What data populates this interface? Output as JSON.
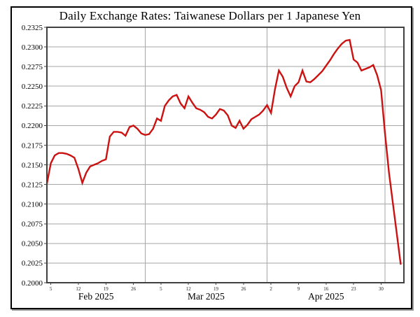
{
  "title": "Daily Exchange Rates: Taiwanese Dollars per 1 Japanese Yen",
  "chart_data": {
    "type": "line",
    "title": "Daily Exchange Rates: Taiwanese Dollars per 1 Japanese Yen",
    "series_name": "Taiwanese Dollars per 1 Japanese Yen",
    "xlabel": "",
    "ylabel": "",
    "grid": true,
    "legend_position": "none",
    "ylim": [
      0.2,
      0.2325
    ],
    "y_tick_step": 0.0025,
    "y_tick_labels": [
      "0.2325",
      "0.2300",
      "0.2275",
      "0.2250",
      "0.2225",
      "0.2200",
      "0.2175",
      "0.2150",
      "0.2125",
      "0.2100",
      "0.2075",
      "0.2050",
      "0.2025",
      "0.2000"
    ],
    "xlim_days": [
      0,
      90.8
    ],
    "x_week_ticks": [
      {
        "label": "5",
        "day": 1
      },
      {
        "label": "12",
        "day": 8
      },
      {
        "label": "19",
        "day": 15
      },
      {
        "label": "26",
        "day": 22
      },
      {
        "label": "5",
        "day": 29
      },
      {
        "label": "12",
        "day": 36
      },
      {
        "label": "19",
        "day": 43
      },
      {
        "label": "26",
        "day": 50
      },
      {
        "label": "2",
        "day": 57
      },
      {
        "label": "9",
        "day": 64
      },
      {
        "label": "16",
        "day": 71
      },
      {
        "label": "23",
        "day": 78
      },
      {
        "label": "30",
        "day": 85
      }
    ],
    "month_labels": [
      {
        "label": "Feb 2025",
        "day": 12.5
      },
      {
        "label": "Mar 2025",
        "day": 40.5
      },
      {
        "label": "Apr 2025",
        "day": 71
      }
    ],
    "month_gridline_days": [
      25,
      56,
      86
    ],
    "line_color": "#cc1111",
    "grid_color": "#a6a6a6",
    "frame_color": "#404040",
    "dates": [
      "2025-02-04",
      "2025-02-05",
      "2025-02-06",
      "2025-02-07",
      "2025-02-08",
      "2025-02-09",
      "2025-02-10",
      "2025-02-11",
      "2025-02-12",
      "2025-02-13",
      "2025-02-14",
      "2025-02-15",
      "2025-02-16",
      "2025-02-17",
      "2025-02-18",
      "2025-02-19",
      "2025-02-20",
      "2025-02-21",
      "2025-02-22",
      "2025-02-23",
      "2025-02-24",
      "2025-02-25",
      "2025-02-26",
      "2025-02-27",
      "2025-02-28",
      "2025-03-01",
      "2025-03-02",
      "2025-03-03",
      "2025-03-04",
      "2025-03-05",
      "2025-03-06",
      "2025-03-07",
      "2025-03-08",
      "2025-03-09",
      "2025-03-10",
      "2025-03-11",
      "2025-03-12",
      "2025-03-13",
      "2025-03-14",
      "2025-03-15",
      "2025-03-16",
      "2025-03-17",
      "2025-03-18",
      "2025-03-19",
      "2025-03-20",
      "2025-03-21",
      "2025-03-22",
      "2025-03-23",
      "2025-03-24",
      "2025-03-25",
      "2025-03-26",
      "2025-03-27",
      "2025-03-28",
      "2025-03-29",
      "2025-03-30",
      "2025-03-31",
      "2025-04-01",
      "2025-04-02",
      "2025-04-03",
      "2025-04-04",
      "2025-04-05",
      "2025-04-06",
      "2025-04-07",
      "2025-04-08",
      "2025-04-09",
      "2025-04-10",
      "2025-04-11",
      "2025-04-12",
      "2025-04-13",
      "2025-04-14",
      "2025-04-15",
      "2025-04-16",
      "2025-04-17",
      "2025-04-18",
      "2025-04-19",
      "2025-04-20",
      "2025-04-21",
      "2025-04-22",
      "2025-04-23",
      "2025-04-24",
      "2025-04-25",
      "2025-04-26",
      "2025-04-27",
      "2025-04-28",
      "2025-04-29",
      "2025-04-30",
      "2025-05-01",
      "2025-05-02",
      "2025-05-03",
      "2025-05-04",
      "2025-05-05"
    ],
    "values": [
      0.2126,
      0.2152,
      0.2162,
      0.2165,
      0.2165,
      0.2164,
      0.2162,
      0.2159,
      0.2145,
      0.2127,
      0.214,
      0.2148,
      0.215,
      0.2152,
      0.2155,
      0.2157,
      0.2186,
      0.2192,
      0.2192,
      0.2191,
      0.2187,
      0.2198,
      0.22,
      0.2196,
      0.219,
      0.2188,
      0.2189,
      0.2196,
      0.2209,
      0.2206,
      0.2225,
      0.2232,
      0.2237,
      0.2239,
      0.2228,
      0.2222,
      0.2237,
      0.2229,
      0.2222,
      0.222,
      0.2217,
      0.2211,
      0.2209,
      0.2214,
      0.2221,
      0.2219,
      0.2213,
      0.22,
      0.2197,
      0.2206,
      0.2196,
      0.2201,
      0.2208,
      0.2211,
      0.2214,
      0.2219,
      0.2226,
      0.2216,
      0.2246,
      0.227,
      0.2262,
      0.2248,
      0.2237,
      0.225,
      0.2255,
      0.227,
      0.2256,
      0.2255,
      0.2259,
      0.2264,
      0.2269,
      0.2276,
      0.2283,
      0.2291,
      0.2298,
      0.2304,
      0.2308,
      0.2309,
      0.2284,
      0.228,
      0.227,
      0.2272,
      0.2274,
      0.2277,
      0.2264,
      0.2245,
      0.219,
      0.214,
      0.2101,
      0.2062,
      0.2023
    ]
  }
}
